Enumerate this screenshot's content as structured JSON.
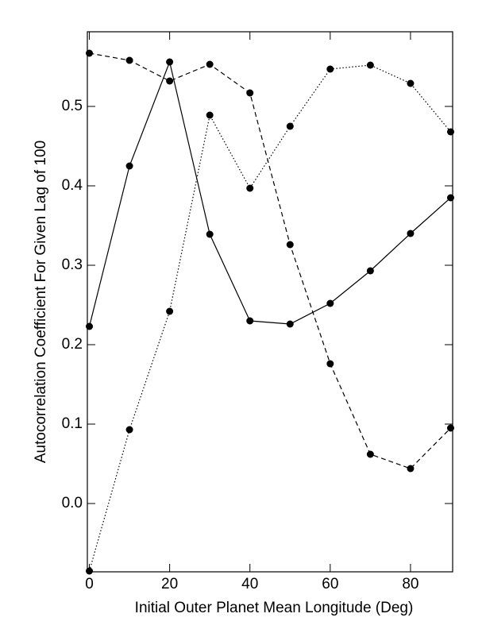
{
  "chart_data": {
    "type": "line",
    "xlabel": "Initial Outer Planet Mean Longitude (Deg)",
    "ylabel": "Autocorrelation Coefficient For Given Lag of 100",
    "x": [
      0,
      10,
      20,
      30,
      40,
      50,
      60,
      70,
      80,
      90
    ],
    "series": [
      {
        "color": "#000000",
        "line_style": "solid",
        "values": [
          0.223,
          0.425,
          0.556,
          0.339,
          0.23,
          0.226,
          0.252,
          0.293,
          0.34,
          0.385
        ]
      },
      {
        "color": "#000000",
        "line_style": "dashed",
        "values": [
          0.567,
          0.558,
          0.532,
          0.553,
          0.517,
          0.326,
          0.176,
          0.062,
          0.044,
          0.095
        ]
      },
      {
        "color": "#000000",
        "line_style": "dotted",
        "values": [
          -0.085,
          0.093,
          0.242,
          0.489,
          0.397,
          0.475,
          0.547,
          0.552,
          0.529,
          0.468
        ]
      }
    ],
    "xlim": [
      -0.5,
      90.5
    ],
    "xticks": [
      0,
      20,
      40,
      60,
      80
    ],
    "ylim": [
      -0.086,
      0.594
    ],
    "yticks": [
      {
        "value": 0,
        "label": "0.0"
      },
      0.1,
      0.2,
      0.3,
      0.4,
      0.5
    ],
    "grid": false
  }
}
